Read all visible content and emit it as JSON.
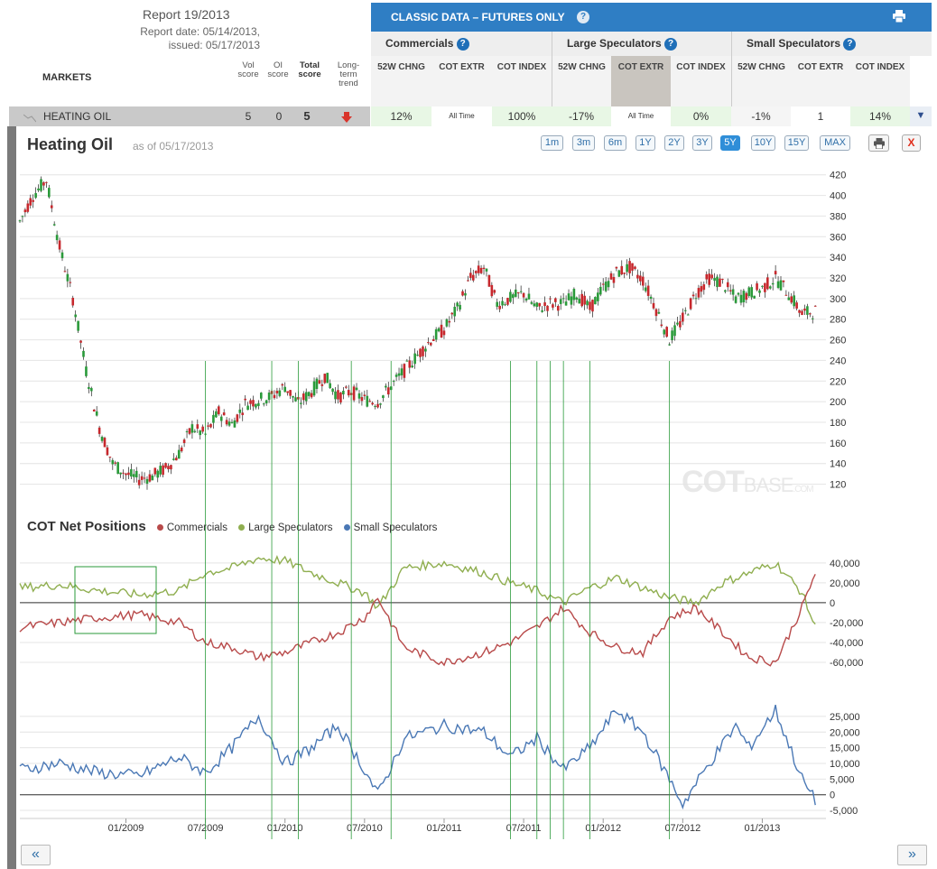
{
  "report": {
    "title": "Report 19/2013",
    "date_line1": "Report date: 05/14/2013,",
    "date_line2": "issued: 05/17/2013"
  },
  "markets_header": "MARKETS",
  "score_headers": {
    "vol": "Vol score",
    "oi": "OI score",
    "total": "Total score",
    "trend": "Long-term trend"
  },
  "classic": {
    "title": "CLASSIC DATA – FUTURES ONLY",
    "help": "?"
  },
  "groups": [
    {
      "name": "Commercials"
    },
    {
      "name": "Large Speculators"
    },
    {
      "name": "Small Speculators"
    }
  ],
  "sub_headers": [
    "52W CHNG",
    "COT EXTR",
    "COT INDEX",
    "52W CHNG",
    "COT EXTR",
    "COT INDEX",
    "52W CHNG",
    "COT EXTR",
    "COT INDEX"
  ],
  "market_row": {
    "name": "HEATING OIL",
    "vol": "5",
    "oi": "0",
    "total": "5",
    "cells": [
      "12%",
      "All Time",
      "100%",
      "-17%",
      "All Time",
      "0%",
      "-1%",
      "1",
      "14%"
    ]
  },
  "chart_header": {
    "title": "Heating Oil",
    "asof": "as of 05/17/2013"
  },
  "ranges": [
    "1m",
    "3m",
    "6m",
    "1Y",
    "2Y",
    "3Y",
    "5Y",
    "10Y",
    "15Y",
    "MAX"
  ],
  "active_range": "5Y",
  "close_label": "X",
  "watermark": {
    "a": "COT",
    "b": "BASE",
    ".com": ".COM"
  },
  "legend": {
    "title": "COT Net Positions",
    "items": [
      {
        "name": "Commercials",
        "color": "#b84a4a"
      },
      {
        "name": "Large Speculators",
        "color": "#8fae4f"
      },
      {
        "name": "Small Speculators",
        "color": "#4a78b5"
      }
    ]
  },
  "nav": {
    "prev": "«",
    "next": "»"
  },
  "chart_data": {
    "type": "line",
    "x_ticks": [
      "01/2009",
      "07/2009",
      "01/2010",
      "07/2010",
      "01/2011",
      "07/2011",
      "01/2012",
      "07/2012",
      "01/2013"
    ],
    "price": {
      "ylim": [
        110,
        425
      ],
      "yticks": [
        120,
        140,
        160,
        180,
        200,
        220,
        240,
        260,
        280,
        300,
        320,
        340,
        360,
        380,
        400,
        420
      ],
      "points": [
        [
          "05/2008",
          375
        ],
        [
          "06/2008",
          400
        ],
        [
          "07/2008",
          415
        ],
        [
          "08/2008",
          350
        ],
        [
          "09/2008",
          300
        ],
        [
          "10/2008",
          230
        ],
        [
          "11/2008",
          175
        ],
        [
          "12/2008",
          140
        ],
        [
          "01/2009",
          130
        ],
        [
          "02/2009",
          125
        ],
        [
          "03/2009",
          128
        ],
        [
          "04/2009",
          135
        ],
        [
          "05/2009",
          150
        ],
        [
          "06/2009",
          175
        ],
        [
          "07/2009",
          168
        ],
        [
          "08/2009",
          190
        ],
        [
          "09/2009",
          178
        ],
        [
          "10/2009",
          198
        ],
        [
          "11/2009",
          202
        ],
        [
          "12/2009",
          205
        ],
        [
          "01/2010",
          215
        ],
        [
          "02/2010",
          198
        ],
        [
          "03/2010",
          210
        ],
        [
          "04/2010",
          225
        ],
        [
          "05/2010",
          205
        ],
        [
          "06/2010",
          210
        ],
        [
          "07/2010",
          202
        ],
        [
          "08/2010",
          200
        ],
        [
          "09/2010",
          215
        ],
        [
          "10/2010",
          230
        ],
        [
          "11/2010",
          245
        ],
        [
          "12/2010",
          260
        ],
        [
          "01/2011",
          270
        ],
        [
          "02/2011",
          290
        ],
        [
          "03/2011",
          320
        ],
        [
          "04/2011",
          330
        ],
        [
          "05/2011",
          295
        ],
        [
          "06/2011",
          300
        ],
        [
          "07/2011",
          305
        ],
        [
          "08/2011",
          290
        ],
        [
          "09/2011",
          295
        ],
        [
          "10/2011",
          295
        ],
        [
          "11/2011",
          305
        ],
        [
          "12/2011",
          290
        ],
        [
          "01/2012",
          310
        ],
        [
          "02/2012",
          325
        ],
        [
          "03/2012",
          330
        ],
        [
          "04/2012",
          318
        ],
        [
          "05/2012",
          290
        ],
        [
          "06/2012",
          260
        ],
        [
          "07/2012",
          280
        ],
        [
          "08/2012",
          305
        ],
        [
          "09/2012",
          320
        ],
        [
          "10/2012",
          315
        ],
        [
          "11/2012",
          300
        ],
        [
          "12/2012",
          305
        ],
        [
          "01/2013",
          310
        ],
        [
          "02/2013",
          320
        ],
        [
          "03/2013",
          305
        ],
        [
          "04/2013",
          285
        ],
        [
          "05/2013",
          288
        ]
      ]
    },
    "net": {
      "ylim": [
        -70000,
        48000
      ],
      "yticks": [
        40000,
        20000,
        0,
        -20000,
        -40000,
        -60000
      ],
      "ytick_labels": [
        "40,000",
        "20,000",
        "0",
        "-20,000",
        "-40,000",
        "-60,000"
      ],
      "series": [
        {
          "name": "Large Speculators",
          "color": "#8fae4f",
          "points": [
            [
              "05/2008",
              15000
            ],
            [
              "08/2008",
              18000
            ],
            [
              "11/2008",
              12000
            ],
            [
              "02/2009",
              8000
            ],
            [
              "05/2009",
              12000
            ],
            [
              "07/2009",
              30000
            ],
            [
              "09/2009",
              35000
            ],
            [
              "11/2009",
              45000
            ],
            [
              "01/2010",
              42000
            ],
            [
              "03/2010",
              30000
            ],
            [
              "05/2010",
              20000
            ],
            [
              "07/2010",
              10000
            ],
            [
              "08/2010",
              -5000
            ],
            [
              "10/2010",
              35000
            ],
            [
              "01/2011",
              40000
            ],
            [
              "04/2011",
              30000
            ],
            [
              "06/2011",
              20000
            ],
            [
              "08/2011",
              12000
            ],
            [
              "10/2011",
              0
            ],
            [
              "12/2011",
              15000
            ],
            [
              "02/2012",
              25000
            ],
            [
              "04/2012",
              15000
            ],
            [
              "06/2012",
              5000
            ],
            [
              "08/2012",
              0
            ],
            [
              "10/2012",
              20000
            ],
            [
              "12/2012",
              30000
            ],
            [
              "02/2013",
              40000
            ],
            [
              "04/2013",
              10000
            ],
            [
              "05/2013",
              -25000
            ]
          ]
        },
        {
          "name": "Commercials",
          "color": "#b84a4a",
          "points": [
            [
              "05/2008",
              -25000
            ],
            [
              "08/2008",
              -20000
            ],
            [
              "11/2008",
              -15000
            ],
            [
              "02/2009",
              -12000
            ],
            [
              "05/2009",
              -20000
            ],
            [
              "07/2009",
              -40000
            ],
            [
              "09/2009",
              -45000
            ],
            [
              "11/2009",
              -55000
            ],
            [
              "01/2010",
              -50000
            ],
            [
              "03/2010",
              -40000
            ],
            [
              "05/2010",
              -30000
            ],
            [
              "07/2010",
              -15000
            ],
            [
              "08/2010",
              5000
            ],
            [
              "10/2010",
              -45000
            ],
            [
              "01/2011",
              -60000
            ],
            [
              "04/2011",
              -50000
            ],
            [
              "06/2011",
              -40000
            ],
            [
              "08/2011",
              -25000
            ],
            [
              "10/2011",
              -5000
            ],
            [
              "12/2011",
              -30000
            ],
            [
              "02/2012",
              -45000
            ],
            [
              "04/2012",
              -50000
            ],
            [
              "06/2012",
              -15000
            ],
            [
              "08/2012",
              -5000
            ],
            [
              "10/2012",
              -30000
            ],
            [
              "12/2012",
              -55000
            ],
            [
              "02/2013",
              -60000
            ],
            [
              "04/2013",
              -5000
            ],
            [
              "05/2013",
              30000
            ]
          ]
        }
      ]
    },
    "small": {
      "ylim": [
        -7000,
        29000
      ],
      "yticks": [
        25000,
        20000,
        15000,
        10000,
        5000,
        0,
        -5000
      ],
      "ytick_labels": [
        "25,000",
        "20,000",
        "15,000",
        "10,000",
        "5,000",
        "0",
        "-5,000"
      ],
      "series": [
        {
          "name": "Small Speculators",
          "color": "#4a78b5",
          "points": [
            [
              "05/2008",
              8000
            ],
            [
              "08/2008",
              10000
            ],
            [
              "11/2008",
              7000
            ],
            [
              "02/2009",
              6000
            ],
            [
              "05/2009",
              12000
            ],
            [
              "07/2009",
              7000
            ],
            [
              "09/2009",
              15000
            ],
            [
              "11/2009",
              25000
            ],
            [
              "01/2010",
              10000
            ],
            [
              "03/2010",
              15000
            ],
            [
              "05/2010",
              22000
            ],
            [
              "07/2010",
              8000
            ],
            [
              "08/2010",
              0
            ],
            [
              "10/2010",
              18000
            ],
            [
              "01/2011",
              22000
            ],
            [
              "04/2011",
              20000
            ],
            [
              "06/2011",
              12000
            ],
            [
              "08/2011",
              18000
            ],
            [
              "10/2011",
              8000
            ],
            [
              "12/2011",
              15000
            ],
            [
              "02/2012",
              27000
            ],
            [
              "04/2012",
              20000
            ],
            [
              "06/2012",
              5000
            ],
            [
              "07/2012",
              -3000
            ],
            [
              "09/2012",
              10000
            ],
            [
              "11/2012",
              22000
            ],
            [
              "12/2012",
              15000
            ],
            [
              "02/2013",
              27000
            ],
            [
              "04/2013",
              5000
            ],
            [
              "05/2013",
              -2000
            ]
          ]
        }
      ]
    },
    "markers": [
      "07/2009",
      "12/2009",
      "02/2010",
      "06/2010",
      "09/2010",
      "06/2011",
      "08/2011",
      "09/2011",
      "10/2011",
      "12/2011",
      "06/2012"
    ]
  }
}
